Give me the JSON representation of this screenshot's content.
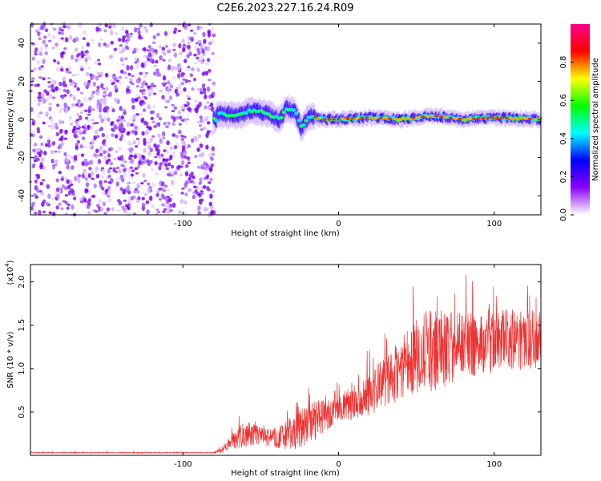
{
  "title": "C2E6.2023.227.16.24.R09",
  "chart_data": [
    {
      "type": "heatmap",
      "xlabel": "Height of straight line (km)",
      "ylabel": "Frequency (Hz)",
      "xlim": [
        -198,
        130
      ],
      "ylim": [
        -50,
        50
      ],
      "xticks": [
        -100,
        0,
        100
      ],
      "yticks": [
        -40,
        -20,
        0,
        20,
        40
      ],
      "colorbar": {
        "label": "Normalized spectral amplitude",
        "range": [
          0,
          1
        ],
        "ticks": [
          "0.0",
          "0.2",
          "0.4",
          "0.6",
          "0.8"
        ],
        "colors": [
          "#ffffff",
          "#8a00ff",
          "#0000ff",
          "#00ffff",
          "#00ff00",
          "#ffff00",
          "#ff0000",
          "#ff0088"
        ]
      },
      "regions": [
        {
          "x": [
            -198,
            -80
          ],
          "description": "broadband noise"
        },
        {
          "x": [
            -80,
            130
          ],
          "description": "narrow band near 0 Hz"
        }
      ],
      "trace": [
        {
          "x": -78,
          "y": 3
        },
        {
          "x": -65,
          "y": 2
        },
        {
          "x": -55,
          "y": 5
        },
        {
          "x": -45,
          "y": 3
        },
        {
          "x": -38,
          "y": 0
        },
        {
          "x": -33,
          "y": 6
        },
        {
          "x": -28,
          "y": 4
        },
        {
          "x": -24,
          "y": -4
        },
        {
          "x": -18,
          "y": 2
        },
        {
          "x": -10,
          "y": 0
        },
        {
          "x": 0,
          "y": 0
        },
        {
          "x": 20,
          "y": 1
        },
        {
          "x": 40,
          "y": 0
        },
        {
          "x": 60,
          "y": 2
        },
        {
          "x": 80,
          "y": 0
        },
        {
          "x": 100,
          "y": 1
        },
        {
          "x": 130,
          "y": 0
        }
      ],
      "grid": false
    },
    {
      "type": "line",
      "xlabel": "Height of straight line (km)",
      "ylabel": "SNR (10 * v/v)",
      "scale_label": "(x10",
      "scale_exponent": "4",
      "xlim": [
        -198,
        130
      ],
      "ylim": [
        0,
        2.2
      ],
      "xticks": [
        -100,
        0,
        100
      ],
      "yticks": [
        "0.5",
        "1.0",
        "1.5",
        "2.0"
      ],
      "line_color": "#ee3333",
      "series": [
        {
          "x": [
            -198,
            -80,
            -75,
            -65,
            -60,
            -50,
            -40,
            -30,
            -20,
            -10,
            0,
            10,
            20,
            30,
            40,
            50,
            60,
            70,
            80,
            90,
            100,
            110,
            120,
            130
          ],
          "values": [
            0.03,
            0.03,
            0.06,
            0.2,
            0.25,
            0.22,
            0.2,
            0.25,
            0.35,
            0.45,
            0.52,
            0.6,
            0.7,
            0.85,
            1.0,
            1.15,
            1.2,
            1.25,
            1.3,
            1.25,
            1.3,
            1.35,
            1.3,
            1.35
          ],
          "spread": [
            0.005,
            0.005,
            0.04,
            0.12,
            0.15,
            0.1,
            0.12,
            0.2,
            0.25,
            0.2,
            0.15,
            0.18,
            0.25,
            0.3,
            0.35,
            0.45,
            0.5,
            0.45,
            0.4,
            0.35,
            0.35,
            0.35,
            0.35,
            0.35
          ]
        }
      ],
      "grid": false
    }
  ]
}
